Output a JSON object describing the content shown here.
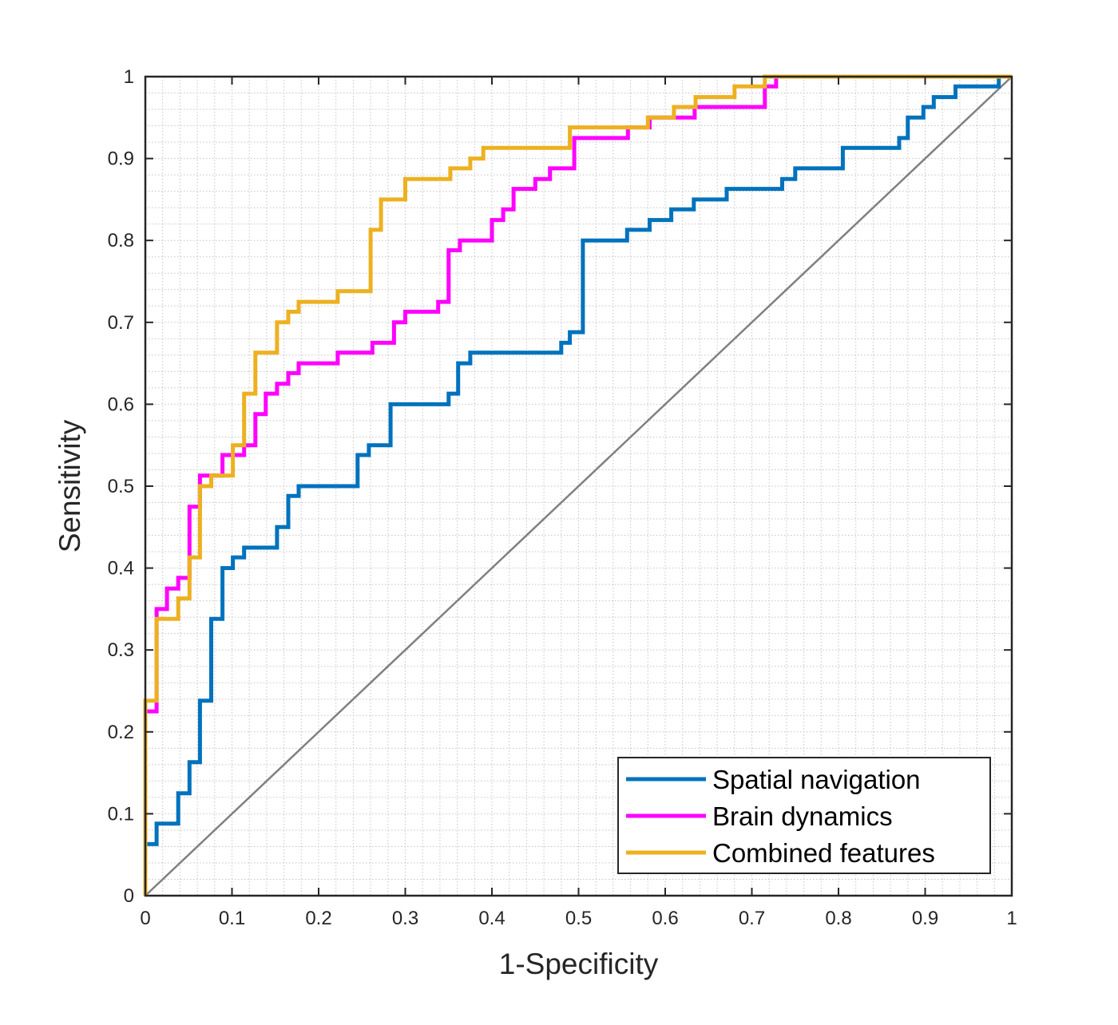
{
  "chart_data": {
    "type": "line",
    "title": "",
    "xlabel": "1-Specificity",
    "ylabel": "Sensitivity",
    "xlim": [
      0,
      1
    ],
    "ylim": [
      0,
      1
    ],
    "xticks": [
      "0",
      "0.1",
      "0.2",
      "0.3",
      "0.4",
      "0.5",
      "0.6",
      "0.7",
      "0.8",
      "0.9",
      "1"
    ],
    "yticks": [
      "0",
      "0.1",
      "0.2",
      "0.3",
      "0.4",
      "0.5",
      "0.6",
      "0.7",
      "0.8",
      "0.9",
      "1"
    ],
    "grid": "minor-dotted",
    "legend_position": "bottom-right",
    "reference_line": {
      "x": [
        0,
        1
      ],
      "y": [
        0,
        1
      ],
      "color": "#808080"
    },
    "series": [
      {
        "name": "Spatial navigation",
        "color": "#0072BD",
        "x": [
          0,
          0,
          0.006,
          0.006,
          0.013,
          0.013,
          0.038,
          0.038,
          0.051,
          0.051,
          0.063,
          0.063,
          0.076,
          0.076,
          0.089,
          0.089,
          0.101,
          0.101,
          0.114,
          0.114,
          0.152,
          0.152,
          0.165,
          0.165,
          0.177,
          0.177,
          0.245,
          0.245,
          0.258,
          0.258,
          0.283,
          0.283,
          0.35,
          0.35,
          0.361,
          0.361,
          0.375,
          0.375,
          0.48,
          0.48,
          0.49,
          0.49,
          0.505,
          0.505,
          0.556,
          0.556,
          0.582,
          0.582,
          0.607,
          0.607,
          0.633,
          0.633,
          0.671,
          0.671,
          0.735,
          0.735,
          0.75,
          0.75,
          0.805,
          0.805,
          0.87,
          0.87,
          0.88,
          0.88,
          0.898,
          0.898,
          0.91,
          0.91,
          0.935,
          0.935,
          0.985,
          0.985,
          1
        ],
        "y": [
          0,
          0.063,
          0.063,
          0.063,
          0.063,
          0.088,
          0.088,
          0.125,
          0.125,
          0.163,
          0.163,
          0.238,
          0.238,
          0.338,
          0.338,
          0.4,
          0.4,
          0.413,
          0.413,
          0.425,
          0.425,
          0.45,
          0.45,
          0.488,
          0.488,
          0.5,
          0.5,
          0.538,
          0.538,
          0.55,
          0.55,
          0.6,
          0.6,
          0.613,
          0.613,
          0.65,
          0.65,
          0.663,
          0.663,
          0.675,
          0.675,
          0.688,
          0.688,
          0.8,
          0.8,
          0.813,
          0.813,
          0.825,
          0.825,
          0.838,
          0.838,
          0.85,
          0.85,
          0.863,
          0.863,
          0.875,
          0.875,
          0.888,
          0.888,
          0.913,
          0.913,
          0.925,
          0.925,
          0.95,
          0.95,
          0.963,
          0.963,
          0.975,
          0.975,
          0.988,
          0.988,
          1,
          1
        ]
      },
      {
        "name": "Brain dynamics",
        "color": "#FF00FF",
        "x": [
          0,
          0,
          0.013,
          0.013,
          0.025,
          0.025,
          0.038,
          0.038,
          0.051,
          0.051,
          0.063,
          0.063,
          0.089,
          0.089,
          0.114,
          0.114,
          0.127,
          0.127,
          0.139,
          0.139,
          0.152,
          0.152,
          0.165,
          0.165,
          0.177,
          0.177,
          0.222,
          0.222,
          0.262,
          0.262,
          0.287,
          0.287,
          0.3,
          0.3,
          0.338,
          0.338,
          0.35,
          0.35,
          0.363,
          0.363,
          0.4,
          0.4,
          0.413,
          0.413,
          0.425,
          0.425,
          0.45,
          0.45,
          0.467,
          0.467,
          0.495,
          0.495,
          0.557,
          0.557,
          0.582,
          0.582,
          0.634,
          0.634,
          0.715,
          0.715,
          0.728,
          0.728,
          1
        ],
        "y": [
          0,
          0.225,
          0.225,
          0.35,
          0.35,
          0.375,
          0.375,
          0.388,
          0.388,
          0.475,
          0.475,
          0.513,
          0.513,
          0.538,
          0.538,
          0.55,
          0.55,
          0.588,
          0.588,
          0.613,
          0.613,
          0.625,
          0.625,
          0.638,
          0.638,
          0.65,
          0.65,
          0.663,
          0.663,
          0.675,
          0.675,
          0.7,
          0.7,
          0.713,
          0.713,
          0.725,
          0.725,
          0.788,
          0.788,
          0.8,
          0.8,
          0.825,
          0.825,
          0.838,
          0.838,
          0.863,
          0.863,
          0.875,
          0.875,
          0.888,
          0.888,
          0.925,
          0.925,
          0.938,
          0.938,
          0.95,
          0.95,
          0.963,
          0.963,
          0.988,
          0.988,
          1,
          1
        ]
      },
      {
        "name": "Combined features",
        "color": "#EDB120",
        "x": [
          0,
          0,
          0.013,
          0.013,
          0.038,
          0.038,
          0.051,
          0.051,
          0.063,
          0.063,
          0.076,
          0.076,
          0.101,
          0.101,
          0.114,
          0.114,
          0.127,
          0.127,
          0.152,
          0.152,
          0.165,
          0.165,
          0.177,
          0.177,
          0.222,
          0.222,
          0.26,
          0.26,
          0.272,
          0.272,
          0.3,
          0.3,
          0.352,
          0.352,
          0.375,
          0.375,
          0.39,
          0.39,
          0.49,
          0.49,
          0.58,
          0.58,
          0.61,
          0.61,
          0.635,
          0.635,
          0.68,
          0.68,
          0.715,
          0.715,
          1
        ],
        "y": [
          0,
          0.238,
          0.238,
          0.338,
          0.338,
          0.363,
          0.363,
          0.413,
          0.413,
          0.5,
          0.5,
          0.513,
          0.513,
          0.55,
          0.55,
          0.613,
          0.613,
          0.663,
          0.663,
          0.7,
          0.7,
          0.713,
          0.713,
          0.725,
          0.725,
          0.738,
          0.738,
          0.813,
          0.813,
          0.85,
          0.85,
          0.875,
          0.875,
          0.888,
          0.888,
          0.9,
          0.9,
          0.913,
          0.913,
          0.938,
          0.938,
          0.95,
          0.95,
          0.963,
          0.963,
          0.975,
          0.975,
          0.988,
          0.988,
          1,
          1
        ]
      }
    ]
  }
}
